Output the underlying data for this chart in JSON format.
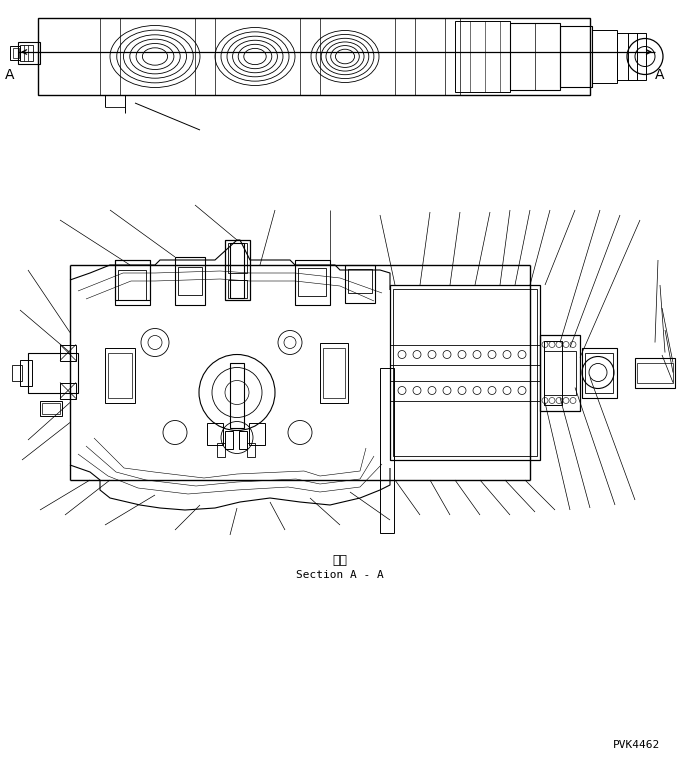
{
  "bg_color": "#ffffff",
  "line_color": "#000000",
  "fig_width": 6.8,
  "fig_height": 7.69,
  "dpi": 100,
  "part_code": "PVK4462",
  "section_label_jp": "断面",
  "section_label_en": "Section A - A"
}
